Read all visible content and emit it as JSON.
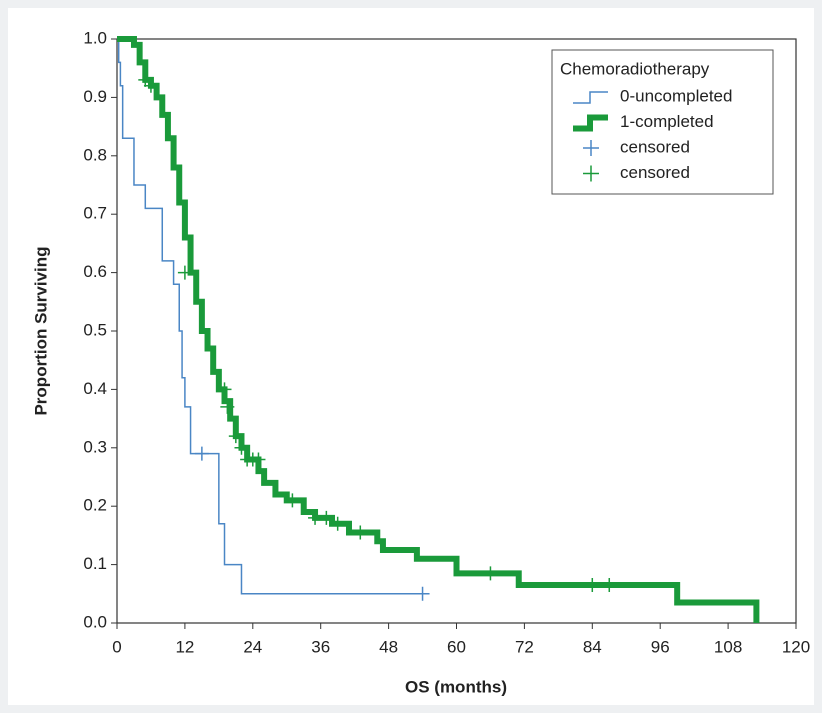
{
  "chart_data": {
    "type": "step",
    "xlabel": "OS (months)",
    "ylabel": "Proportion Surviving",
    "xlim": [
      0,
      120
    ],
    "ylim": [
      0,
      1
    ],
    "xticks": [
      0,
      12,
      24,
      36,
      48,
      60,
      72,
      84,
      96,
      108,
      120
    ],
    "yticks": [
      {
        "value": 0,
        "label": "0.0"
      },
      0.1,
      0.2,
      0.3,
      0.4,
      0.5,
      0.6,
      0.7,
      0.8,
      0.9,
      {
        "value": 1,
        "label": "1.0"
      }
    ],
    "legend_title": "Chemoradiotherapy",
    "legend": "upper right",
    "series": [
      {
        "name": "0-uncompleted",
        "color": "#4a86c5",
        "width": 1.5,
        "marker": "step",
        "x": [
          0,
          0.3,
          0.6,
          1,
          3,
          5,
          8,
          10,
          11,
          11.5,
          12,
          13,
          18,
          19,
          22,
          54
        ],
        "y": [
          1,
          0.96,
          0.92,
          0.83,
          0.75,
          0.71,
          0.62,
          0.58,
          0.5,
          0.42,
          0.37,
          0.29,
          0.17,
          0.1,
          0.05,
          0.05
        ]
      },
      {
        "name": "1-completed",
        "color": "#1a9a3a",
        "width": 6,
        "marker": "step",
        "x": [
          0,
          3,
          4,
          5,
          6,
          7,
          8,
          9,
          10,
          11,
          12,
          13,
          14,
          15,
          16,
          17,
          18,
          19,
          20,
          21,
          22,
          23,
          25,
          26,
          28,
          30,
          33,
          35,
          38,
          41,
          46,
          47,
          53,
          60,
          71,
          99,
          113,
          113
        ],
        "y": [
          1,
          0.99,
          0.96,
          0.93,
          0.92,
          0.9,
          0.87,
          0.83,
          0.78,
          0.72,
          0.66,
          0.6,
          0.55,
          0.5,
          0.47,
          0.43,
          0.4,
          0.38,
          0.35,
          0.32,
          0.3,
          0.28,
          0.26,
          0.24,
          0.22,
          0.21,
          0.19,
          0.18,
          0.17,
          0.155,
          0.14,
          0.125,
          0.11,
          0.085,
          0.065,
          0.035,
          0.035,
          0
        ]
      },
      {
        "name": "censored",
        "color": "#4a86c5",
        "marker": "plus",
        "x": [
          15,
          54
        ],
        "y": [
          0.29,
          0.05
        ]
      },
      {
        "name": "censored",
        "color": "#1a9a3a",
        "marker": "plus",
        "x": [
          5,
          6,
          12,
          19,
          19.5,
          21,
          22,
          23,
          24,
          25,
          31,
          35,
          37,
          39,
          43,
          66,
          84,
          87
        ],
        "y": [
          0.93,
          0.92,
          0.6,
          0.4,
          0.37,
          0.32,
          0.3,
          0.28,
          0.28,
          0.28,
          0.21,
          0.18,
          0.18,
          0.17,
          0.155,
          0.085,
          0.065,
          0.065
        ]
      }
    ]
  }
}
